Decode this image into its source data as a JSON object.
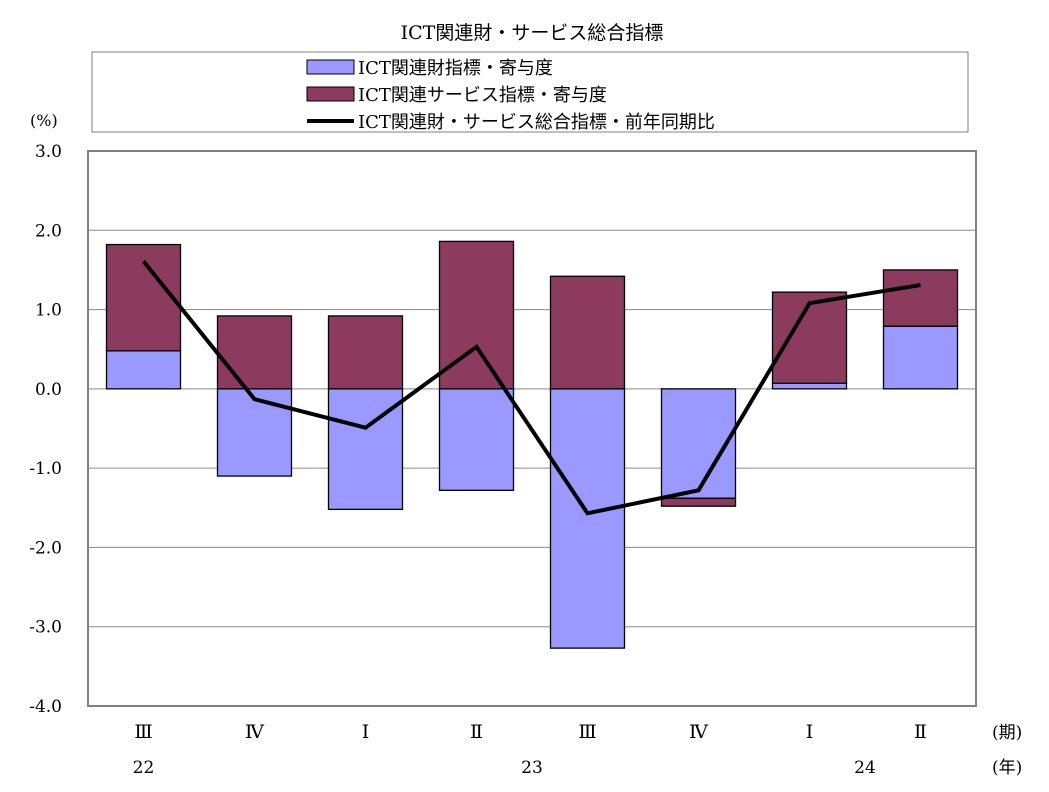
{
  "colors": {
    "goods": "#9999ff",
    "services": "#8c3a5e",
    "line": "#000000",
    "grid": "#8a8a8a",
    "plot_border": "#808080",
    "legend_border": "#808080"
  },
  "chart_data": {
    "type": "bar",
    "stacked": true,
    "title": "ICT関連財・サービス総合指標",
    "y_unit": "(%)",
    "x_unit_period": "(期)",
    "x_unit_year": "(年)",
    "ylim": [
      -4.0,
      3.0
    ],
    "yticks": [
      "3.0",
      "2.0",
      "1.0",
      "0.0",
      "-1.0",
      "-2.0",
      "-3.0",
      "-4.0"
    ],
    "grid": true,
    "legend_position": "top",
    "categories": [
      "Ⅲ",
      "Ⅳ",
      "Ⅰ",
      "Ⅱ",
      "Ⅲ",
      "Ⅳ",
      "Ⅰ",
      "Ⅱ"
    ],
    "years": [
      {
        "label": "22",
        "index": 0
      },
      {
        "label": "23",
        "index": 3.5
      },
      {
        "label": "24",
        "index": 6.5
      }
    ],
    "series": [
      {
        "name": "ICT関連財指標・寄与度",
        "kind": "bar",
        "color_key": "goods",
        "values": [
          0.48,
          -1.1,
          -1.52,
          -1.28,
          -3.27,
          -1.38,
          0.07,
          0.79
        ]
      },
      {
        "name": "ICT関連サービス指標・寄与度",
        "kind": "bar",
        "color_key": "services",
        "values": [
          1.34,
          0.92,
          0.92,
          1.86,
          1.42,
          -0.1,
          1.15,
          0.71
        ]
      },
      {
        "name": "ICT関連財・サービス総合指標・前年同期比",
        "kind": "line",
        "color_key": "line",
        "values": [
          1.61,
          -0.13,
          -0.49,
          0.53,
          -1.57,
          -1.28,
          1.08,
          1.31
        ]
      }
    ]
  }
}
